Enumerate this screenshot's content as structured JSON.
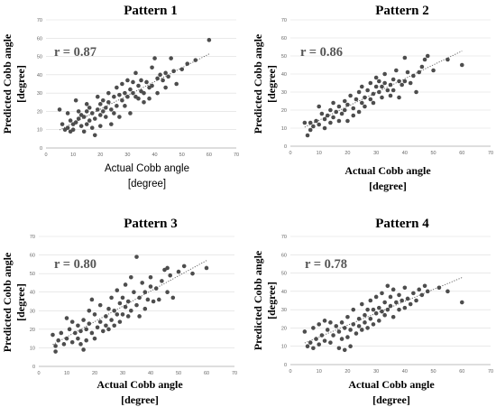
{
  "colors": {
    "marker": "#4d4d4d",
    "grid": "#dcdcdc",
    "trendline": "#595959",
    "r_text": "#555555"
  },
  "chart_data": [
    {
      "type": "scatter",
      "title": "Pattern 1",
      "annotation": "r = 0.87",
      "xlabel": [
        "Actual Cobb angle",
        "[degree]"
      ],
      "ylabel": [
        "Predicted Cobb angle",
        "[degree]"
      ],
      "xlim": [
        0,
        70
      ],
      "ylim": [
        0,
        70
      ],
      "xticks": [
        "0",
        "10",
        "20",
        "30",
        "40",
        "50",
        "60",
        "70"
      ],
      "yticks": [
        "0",
        "10",
        "20",
        "30",
        "40",
        "50",
        "60",
        "70"
      ],
      "grid": true,
      "trendline": true,
      "points": [
        [
          5,
          21
        ],
        [
          6,
          13
        ],
        [
          7,
          10
        ],
        [
          8,
          11
        ],
        [
          8,
          19
        ],
        [
          9,
          9
        ],
        [
          9,
          15
        ],
        [
          10,
          10
        ],
        [
          10,
          13
        ],
        [
          11,
          26
        ],
        [
          11,
          14
        ],
        [
          12,
          16
        ],
        [
          12,
          20
        ],
        [
          13,
          18
        ],
        [
          13,
          12
        ],
        [
          14,
          17
        ],
        [
          14,
          9
        ],
        [
          15,
          24
        ],
        [
          15,
          20
        ],
        [
          15,
          13
        ],
        [
          16,
          22
        ],
        [
          16,
          15
        ],
        [
          17,
          19
        ],
        [
          17,
          11
        ],
        [
          18,
          7
        ],
        [
          18,
          16
        ],
        [
          19,
          28
        ],
        [
          19,
          21
        ],
        [
          20,
          24
        ],
        [
          20,
          18
        ],
        [
          20,
          12
        ],
        [
          21,
          20
        ],
        [
          21,
          26
        ],
        [
          22,
          17
        ],
        [
          22,
          22
        ],
        [
          23,
          30
        ],
        [
          23,
          25
        ],
        [
          24,
          13
        ],
        [
          24,
          21
        ],
        [
          25,
          28
        ],
        [
          25,
          19
        ],
        [
          26,
          23
        ],
        [
          26,
          33
        ],
        [
          27,
          29
        ],
        [
          27,
          17
        ],
        [
          28,
          26
        ],
        [
          28,
          35
        ],
        [
          29,
          30
        ],
        [
          29,
          23
        ],
        [
          30,
          37
        ],
        [
          30,
          28
        ],
        [
          31,
          32
        ],
        [
          31,
          19
        ],
        [
          32,
          30
        ],
        [
          32,
          36
        ],
        [
          33,
          41
        ],
        [
          33,
          28
        ],
        [
          34,
          27
        ],
        [
          34,
          34
        ],
        [
          35,
          31
        ],
        [
          35,
          37
        ],
        [
          36,
          25
        ],
        [
          36,
          30
        ],
        [
          37,
          36
        ],
        [
          38,
          33
        ],
        [
          38,
          27
        ],
        [
          39,
          44
        ],
        [
          39,
          34
        ],
        [
          40,
          49
        ],
        [
          41,
          38
        ],
        [
          41,
          30
        ],
        [
          42,
          40
        ],
        [
          43,
          37
        ],
        [
          44,
          33
        ],
        [
          44,
          41
        ],
        [
          45,
          39
        ],
        [
          46,
          49
        ],
        [
          47,
          42
        ],
        [
          48,
          35
        ],
        [
          50,
          43
        ],
        [
          52,
          46
        ],
        [
          55,
          48
        ],
        [
          60,
          59
        ]
      ]
    },
    {
      "type": "scatter",
      "title": "Pattern 2",
      "annotation": "r = 0.86",
      "xlabel": [
        "Actual Cobb angle",
        "[degree]"
      ],
      "ylabel": [
        "Predicted Cobb angle",
        "[degree]"
      ],
      "xlim": [
        0,
        70
      ],
      "ylim": [
        0,
        70
      ],
      "xticks": [
        "0",
        "10",
        "20",
        "30",
        "40",
        "50",
        "60",
        "70"
      ],
      "yticks": [
        "0",
        "10",
        "20",
        "30",
        "40",
        "50",
        "60",
        "70"
      ],
      "grid": true,
      "trendline": true,
      "points": [
        [
          5,
          13
        ],
        [
          6,
          6
        ],
        [
          7,
          9
        ],
        [
          7,
          13
        ],
        [
          8,
          11
        ],
        [
          9,
          14
        ],
        [
          10,
          12
        ],
        [
          10,
          22
        ],
        [
          11,
          18
        ],
        [
          12,
          15
        ],
        [
          12,
          10
        ],
        [
          13,
          17
        ],
        [
          14,
          13
        ],
        [
          14,
          20
        ],
        [
          15,
          16
        ],
        [
          15,
          24
        ],
        [
          16,
          19
        ],
        [
          17,
          14
        ],
        [
          17,
          22
        ],
        [
          18,
          18
        ],
        [
          19,
          25
        ],
        [
          19,
          20
        ],
        [
          20,
          14
        ],
        [
          20,
          23
        ],
        [
          21,
          28
        ],
        [
          22,
          21
        ],
        [
          22,
          17
        ],
        [
          23,
          26
        ],
        [
          24,
          30
        ],
        [
          24,
          19
        ],
        [
          25,
          24
        ],
        [
          25,
          33
        ],
        [
          26,
          27
        ],
        [
          26,
          22
        ],
        [
          27,
          31
        ],
        [
          28,
          26
        ],
        [
          28,
          35
        ],
        [
          29,
          29
        ],
        [
          29,
          24
        ],
        [
          30,
          33
        ],
        [
          30,
          38
        ],
        [
          31,
          30
        ],
        [
          31,
          36
        ],
        [
          32,
          27
        ],
        [
          32,
          33
        ],
        [
          33,
          35
        ],
        [
          33,
          40
        ],
        [
          34,
          31
        ],
        [
          35,
          34
        ],
        [
          35,
          28
        ],
        [
          36,
          37
        ],
        [
          36,
          31
        ],
        [
          37,
          42
        ],
        [
          38,
          36
        ],
        [
          38,
          27
        ],
        [
          39,
          34
        ],
        [
          40,
          49
        ],
        [
          40,
          36
        ],
        [
          41,
          41
        ],
        [
          42,
          35
        ],
        [
          43,
          39
        ],
        [
          44,
          30
        ],
        [
          45,
          41
        ],
        [
          46,
          44
        ],
        [
          47,
          48
        ],
        [
          48,
          50
        ],
        [
          50,
          42
        ],
        [
          55,
          48
        ],
        [
          60,
          45
        ]
      ]
    },
    {
      "type": "scatter",
      "title": "Pattern 3",
      "annotation": "r = 0.80",
      "xlabel": [
        "Actual Cobb angle",
        "[degree]"
      ],
      "ylabel": [
        "Predicted Cobb angle",
        "[degree]"
      ],
      "xlim": [
        0,
        70
      ],
      "ylim": [
        0,
        70
      ],
      "xticks": [
        "0",
        "10",
        "20",
        "30",
        "40",
        "50",
        "60",
        "70"
      ],
      "yticks": [
        "0",
        "10",
        "20",
        "30",
        "40",
        "50",
        "60",
        "70"
      ],
      "grid": true,
      "trendline": true,
      "points": [
        [
          5,
          17
        ],
        [
          6,
          11
        ],
        [
          6,
          8
        ],
        [
          7,
          14
        ],
        [
          8,
          18
        ],
        [
          9,
          12
        ],
        [
          10,
          26
        ],
        [
          10,
          15
        ],
        [
          11,
          20
        ],
        [
          12,
          24
        ],
        [
          12,
          13
        ],
        [
          13,
          18
        ],
        [
          14,
          22
        ],
        [
          14,
          15
        ],
        [
          15,
          12
        ],
        [
          15,
          19
        ],
        [
          16,
          9
        ],
        [
          16,
          25
        ],
        [
          17,
          20
        ],
        [
          17,
          14
        ],
        [
          18,
          30
        ],
        [
          18,
          23
        ],
        [
          19,
          36
        ],
        [
          19,
          18
        ],
        [
          20,
          15
        ],
        [
          20,
          28
        ],
        [
          21,
          21
        ],
        [
          22,
          33
        ],
        [
          22,
          24
        ],
        [
          23,
          19
        ],
        [
          24,
          27
        ],
        [
          24,
          22
        ],
        [
          25,
          31
        ],
        [
          25,
          20
        ],
        [
          26,
          25
        ],
        [
          26,
          37
        ],
        [
          27,
          30
        ],
        [
          27,
          22
        ],
        [
          28,
          41
        ],
        [
          28,
          28
        ],
        [
          29,
          24
        ],
        [
          29,
          34
        ],
        [
          30,
          37
        ],
        [
          30,
          28
        ],
        [
          31,
          32
        ],
        [
          31,
          44
        ],
        [
          32,
          27
        ],
        [
          32,
          35
        ],
        [
          33,
          48
        ],
        [
          33,
          30
        ],
        [
          34,
          40
        ],
        [
          35,
          59
        ],
        [
          35,
          33
        ],
        [
          36,
          37
        ],
        [
          36,
          27
        ],
        [
          37,
          45
        ],
        [
          38,
          40
        ],
        [
          38,
          31
        ],
        [
          39,
          36
        ],
        [
          40,
          43
        ],
        [
          40,
          48
        ],
        [
          41,
          35
        ],
        [
          42,
          42
        ],
        [
          43,
          36
        ],
        [
          44,
          46
        ],
        [
          45,
          52
        ],
        [
          46,
          53
        ],
        [
          46,
          40
        ],
        [
          47,
          49
        ],
        [
          48,
          37
        ],
        [
          50,
          51
        ],
        [
          52,
          54
        ],
        [
          55,
          50
        ],
        [
          60,
          53
        ]
      ]
    },
    {
      "type": "scatter",
      "title": "Pattern 4",
      "annotation": "r = 0.78",
      "xlabel": [
        "Actual Cobb angle",
        "[degree]"
      ],
      "ylabel": [
        "Predicted Cobb angle",
        "[degree]"
      ],
      "xlim": [
        0,
        70
      ],
      "ylim": [
        0,
        70
      ],
      "xticks": [
        "0",
        "10",
        "20",
        "30",
        "40",
        "50",
        "60",
        "70"
      ],
      "yticks": [
        "0",
        "10",
        "20",
        "30",
        "40",
        "50",
        "60",
        "70"
      ],
      "grid": true,
      "trendline": true,
      "points": [
        [
          5,
          18
        ],
        [
          6,
          10
        ],
        [
          7,
          12
        ],
        [
          8,
          9
        ],
        [
          8,
          20
        ],
        [
          9,
          14
        ],
        [
          10,
          22
        ],
        [
          10,
          11
        ],
        [
          11,
          16
        ],
        [
          12,
          24
        ],
        [
          12,
          13
        ],
        [
          13,
          19
        ],
        [
          14,
          23
        ],
        [
          14,
          12
        ],
        [
          15,
          16
        ],
        [
          16,
          21
        ],
        [
          17,
          9
        ],
        [
          17,
          18
        ],
        [
          18,
          14
        ],
        [
          18,
          23
        ],
        [
          19,
          8
        ],
        [
          19,
          20
        ],
        [
          20,
          15
        ],
        [
          20,
          26
        ],
        [
          21,
          10
        ],
        [
          21,
          19
        ],
        [
          22,
          30
        ],
        [
          22,
          22
        ],
        [
          23,
          17
        ],
        [
          24,
          25
        ],
        [
          24,
          21
        ],
        [
          25,
          33
        ],
        [
          25,
          19
        ],
        [
          26,
          27
        ],
        [
          26,
          23
        ],
        [
          27,
          30
        ],
        [
          27,
          20
        ],
        [
          28,
          35
        ],
        [
          28,
          25
        ],
        [
          29,
          30
        ],
        [
          29,
          22
        ],
        [
          30,
          37
        ],
        [
          30,
          28
        ],
        [
          31,
          31
        ],
        [
          31,
          24
        ],
        [
          32,
          29
        ],
        [
          32,
          39
        ],
        [
          33,
          34
        ],
        [
          33,
          27
        ],
        [
          34,
          43
        ],
        [
          34,
          30
        ],
        [
          35,
          32
        ],
        [
          35,
          37
        ],
        [
          36,
          26
        ],
        [
          36,
          41
        ],
        [
          37,
          34
        ],
        [
          38,
          30
        ],
        [
          38,
          38
        ],
        [
          39,
          35
        ],
        [
          40,
          42
        ],
        [
          40,
          31
        ],
        [
          41,
          36
        ],
        [
          42,
          33
        ],
        [
          43,
          39
        ],
        [
          44,
          35
        ],
        [
          45,
          41
        ],
        [
          46,
          38
        ],
        [
          47,
          43
        ],
        [
          48,
          40
        ],
        [
          52,
          42
        ],
        [
          55,
          40
        ],
        [
          60,
          34
        ]
      ]
    }
  ]
}
